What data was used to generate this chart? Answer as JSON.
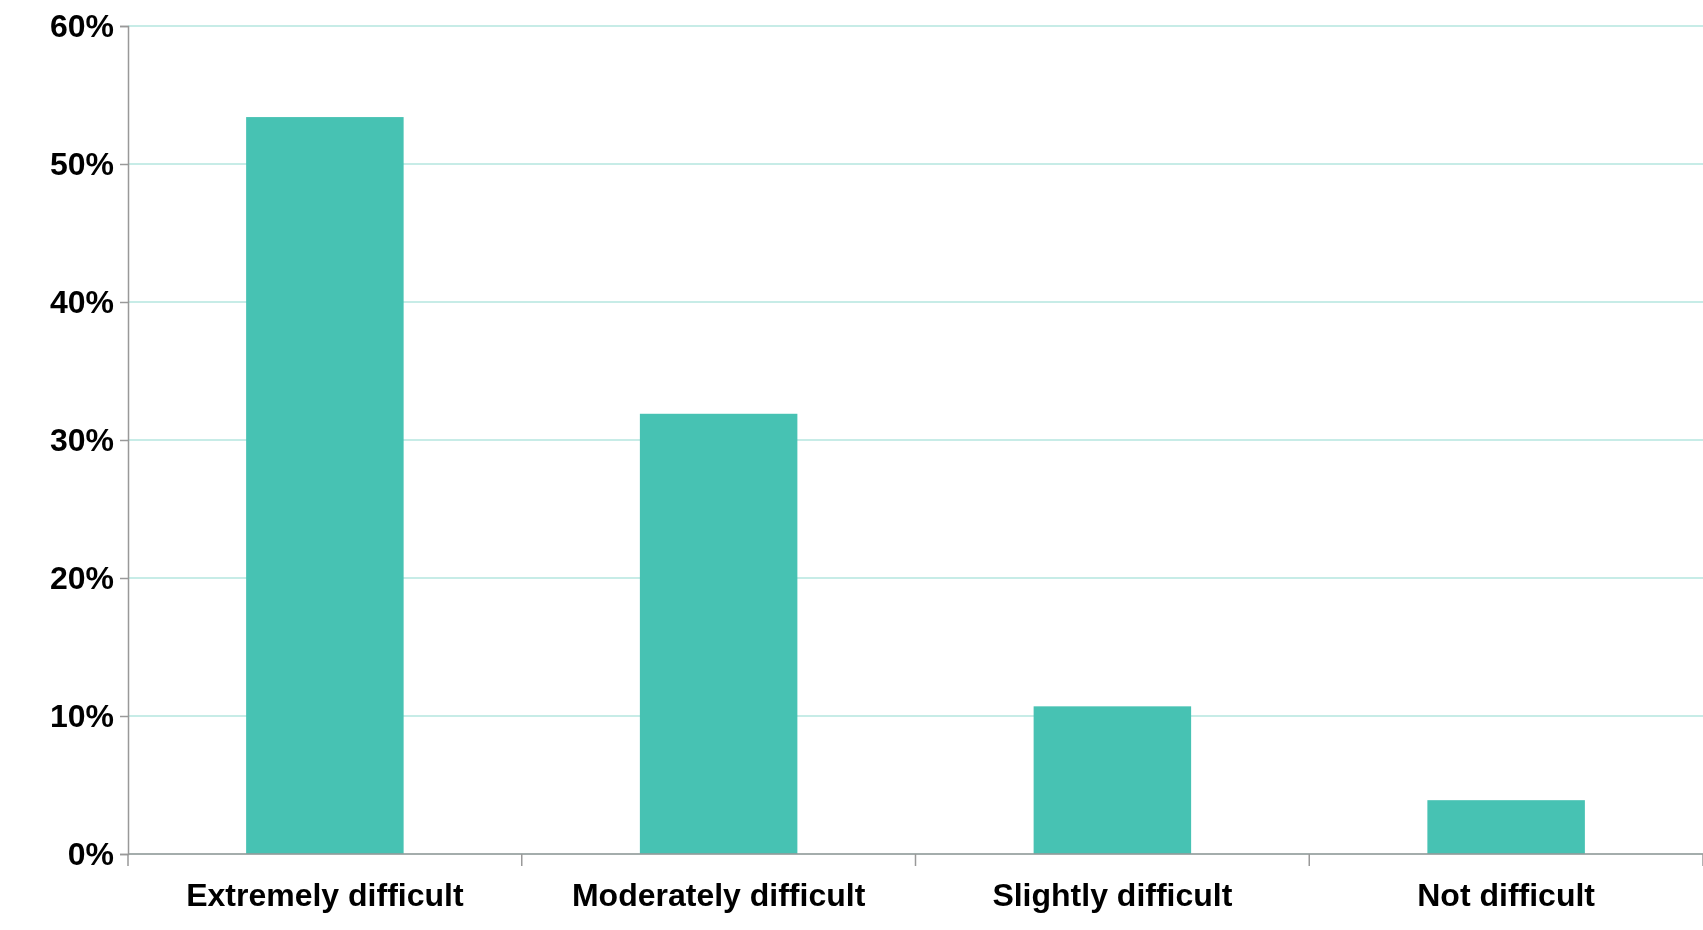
{
  "chart_data": {
    "type": "bar",
    "categories": [
      "Extremely difficult",
      "Moderately difficult",
      "Slightly difficult",
      "Not difficult"
    ],
    "values": [
      53.4,
      31.9,
      10.7,
      3.9
    ],
    "color": "#47c2b3",
    "ylim": [
      0,
      60
    ],
    "yticks": [
      {
        "value": 0,
        "label": "0%"
      },
      {
        "value": 10,
        "label": "10%"
      },
      {
        "value": 20,
        "label": "20%"
      },
      {
        "value": 30,
        "label": "30%"
      },
      {
        "value": 40,
        "label": "40%"
      },
      {
        "value": 50,
        "label": "50%"
      },
      {
        "value": 60,
        "label": "60%"
      }
    ],
    "grid": "y"
  }
}
